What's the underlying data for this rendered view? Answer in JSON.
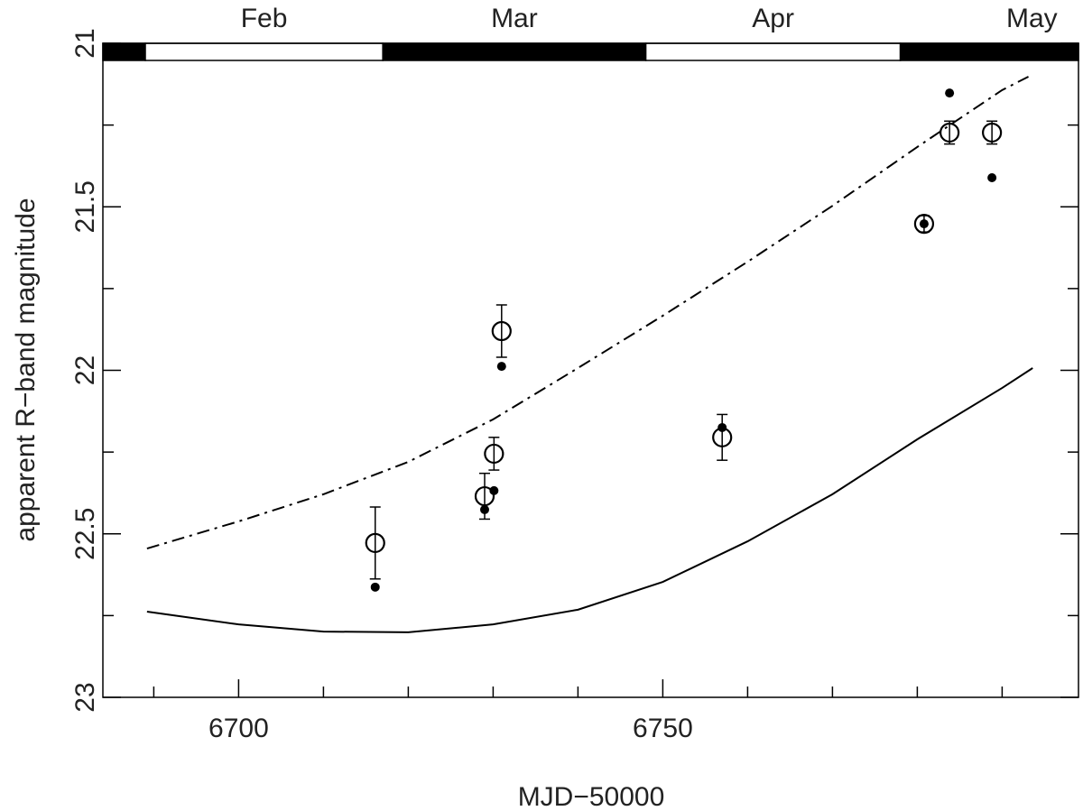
{
  "chart_data": {
    "type": "scatter",
    "x_label": "MJD−50000",
    "y_label": "apparent R−band magnitude",
    "xlim": [
      6684,
      6799
    ],
    "ylim": [
      21,
      23
    ],
    "y_inverted": true,
    "xticks": [
      6700,
      6750
    ],
    "xticks_minor": [
      6690,
      6710,
      6720,
      6730,
      6740,
      6760,
      6770,
      6780,
      6790
    ],
    "yticks": [
      21,
      21.5,
      22,
      22.5,
      23
    ],
    "yticks_minor": [
      21.25,
      21.75,
      22.25,
      22.75
    ],
    "months": {
      "labels": [
        null,
        "Feb",
        "Mar",
        "Apr",
        "May"
      ],
      "edges": [
        6658,
        6689,
        6717,
        6748,
        6778,
        6809
      ]
    },
    "series": [
      {
        "marker": "open-circle",
        "color": "#000000",
        "x": [
          6716.1,
          6729.0,
          6730.1,
          6731.0,
          6757.0,
          6780.8,
          6783.8,
          6788.8
        ],
        "values": [
          22.528,
          22.385,
          22.255,
          21.88,
          22.205,
          21.552,
          21.273,
          21.273
        ],
        "errors": [
          0.11,
          0.07,
          0.05,
          0.08,
          0.07,
          0.025,
          0.035,
          0.035
        ]
      },
      {
        "marker": "dot",
        "color": "#000000",
        "x": [
          6716.1,
          6729.0,
          6730.1,
          6731.0,
          6757.0,
          6780.8,
          6783.8,
          6788.8
        ],
        "values": [
          22.663,
          22.426,
          22.368,
          21.988,
          22.175,
          21.552,
          21.152,
          21.411
        ]
      },
      {
        "marker": "line",
        "style": "dash-dot",
        "color": "#000000",
        "x": [
          6689.2,
          6700,
          6710,
          6720,
          6730,
          6740,
          6750,
          6760,
          6770,
          6780,
          6790,
          6793.1
        ],
        "values": [
          22.545,
          22.462,
          22.379,
          22.28,
          22.15,
          21.993,
          21.833,
          21.668,
          21.497,
          21.317,
          21.143,
          21.102
        ]
      },
      {
        "marker": "line",
        "style": "solid",
        "color": "#000000",
        "x": [
          6689.2,
          6700,
          6710,
          6720,
          6730,
          6740,
          6750,
          6760,
          6770,
          6780,
          6790,
          6793.6
        ],
        "values": [
          22.738,
          22.777,
          22.799,
          22.801,
          22.777,
          22.732,
          22.647,
          22.523,
          22.379,
          22.211,
          22.054,
          21.993
        ]
      }
    ]
  }
}
